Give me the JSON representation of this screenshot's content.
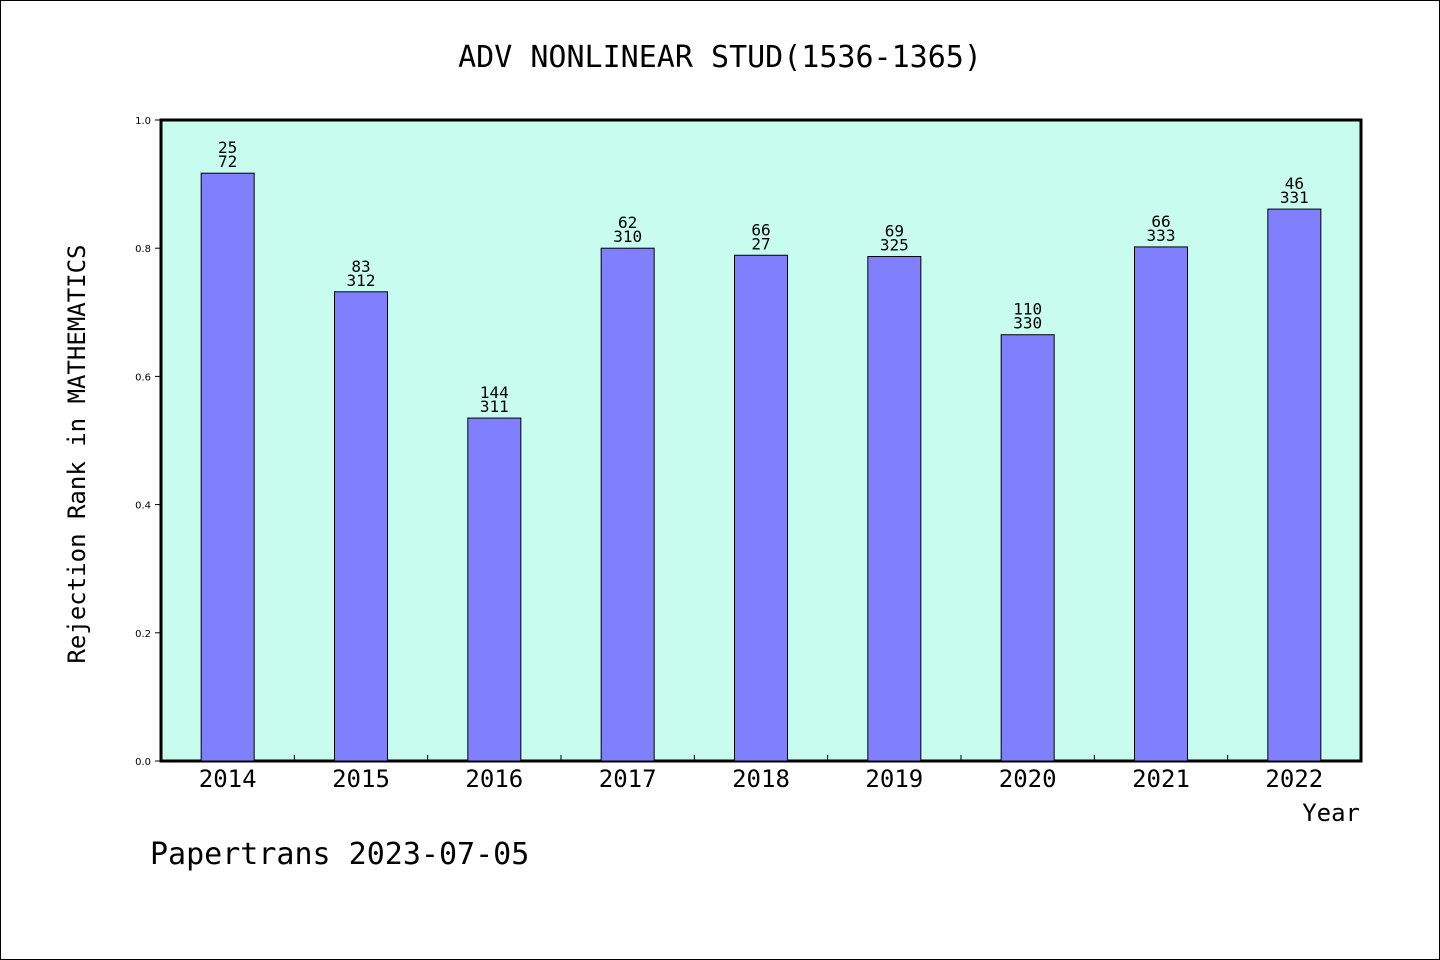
{
  "chart_data": {
    "type": "bar",
    "title": "ADV NONLINEAR STUD(1536-1365)",
    "xlabel": "Year",
    "ylabel": "Rejection Rank in MATHEMATICS",
    "categories": [
      "2014",
      "2015",
      "2016",
      "2017",
      "2018",
      "2019",
      "2020",
      "2021",
      "2022"
    ],
    "values": [
      0.917,
      0.732,
      0.535,
      0.8,
      0.789,
      0.787,
      0.665,
      0.802,
      0.861
    ],
    "annotations": [
      {
        "top": "25",
        "bottom": "72"
      },
      {
        "top": "83",
        "bottom": "312"
      },
      {
        "top": "144",
        "bottom": "311"
      },
      {
        "top": "62",
        "bottom": "310"
      },
      {
        "top": "66",
        "bottom": "27"
      },
      {
        "top": "69",
        "bottom": "325"
      },
      {
        "top": "110",
        "bottom": "330"
      },
      {
        "top": "66",
        "bottom": "333"
      },
      {
        "top": "46",
        "bottom": "331"
      }
    ],
    "ylim": [
      0.0,
      1.0
    ],
    "yticks": [
      "0.0",
      "0.2",
      "0.4",
      "0.6",
      "0.8",
      "1.0"
    ],
    "grid": false,
    "colors": {
      "plot_background": "#c8fcee",
      "bar_fill": "#8080ff",
      "bar_edge": "#000000"
    }
  },
  "footer": "Papertrans 2023-07-05"
}
